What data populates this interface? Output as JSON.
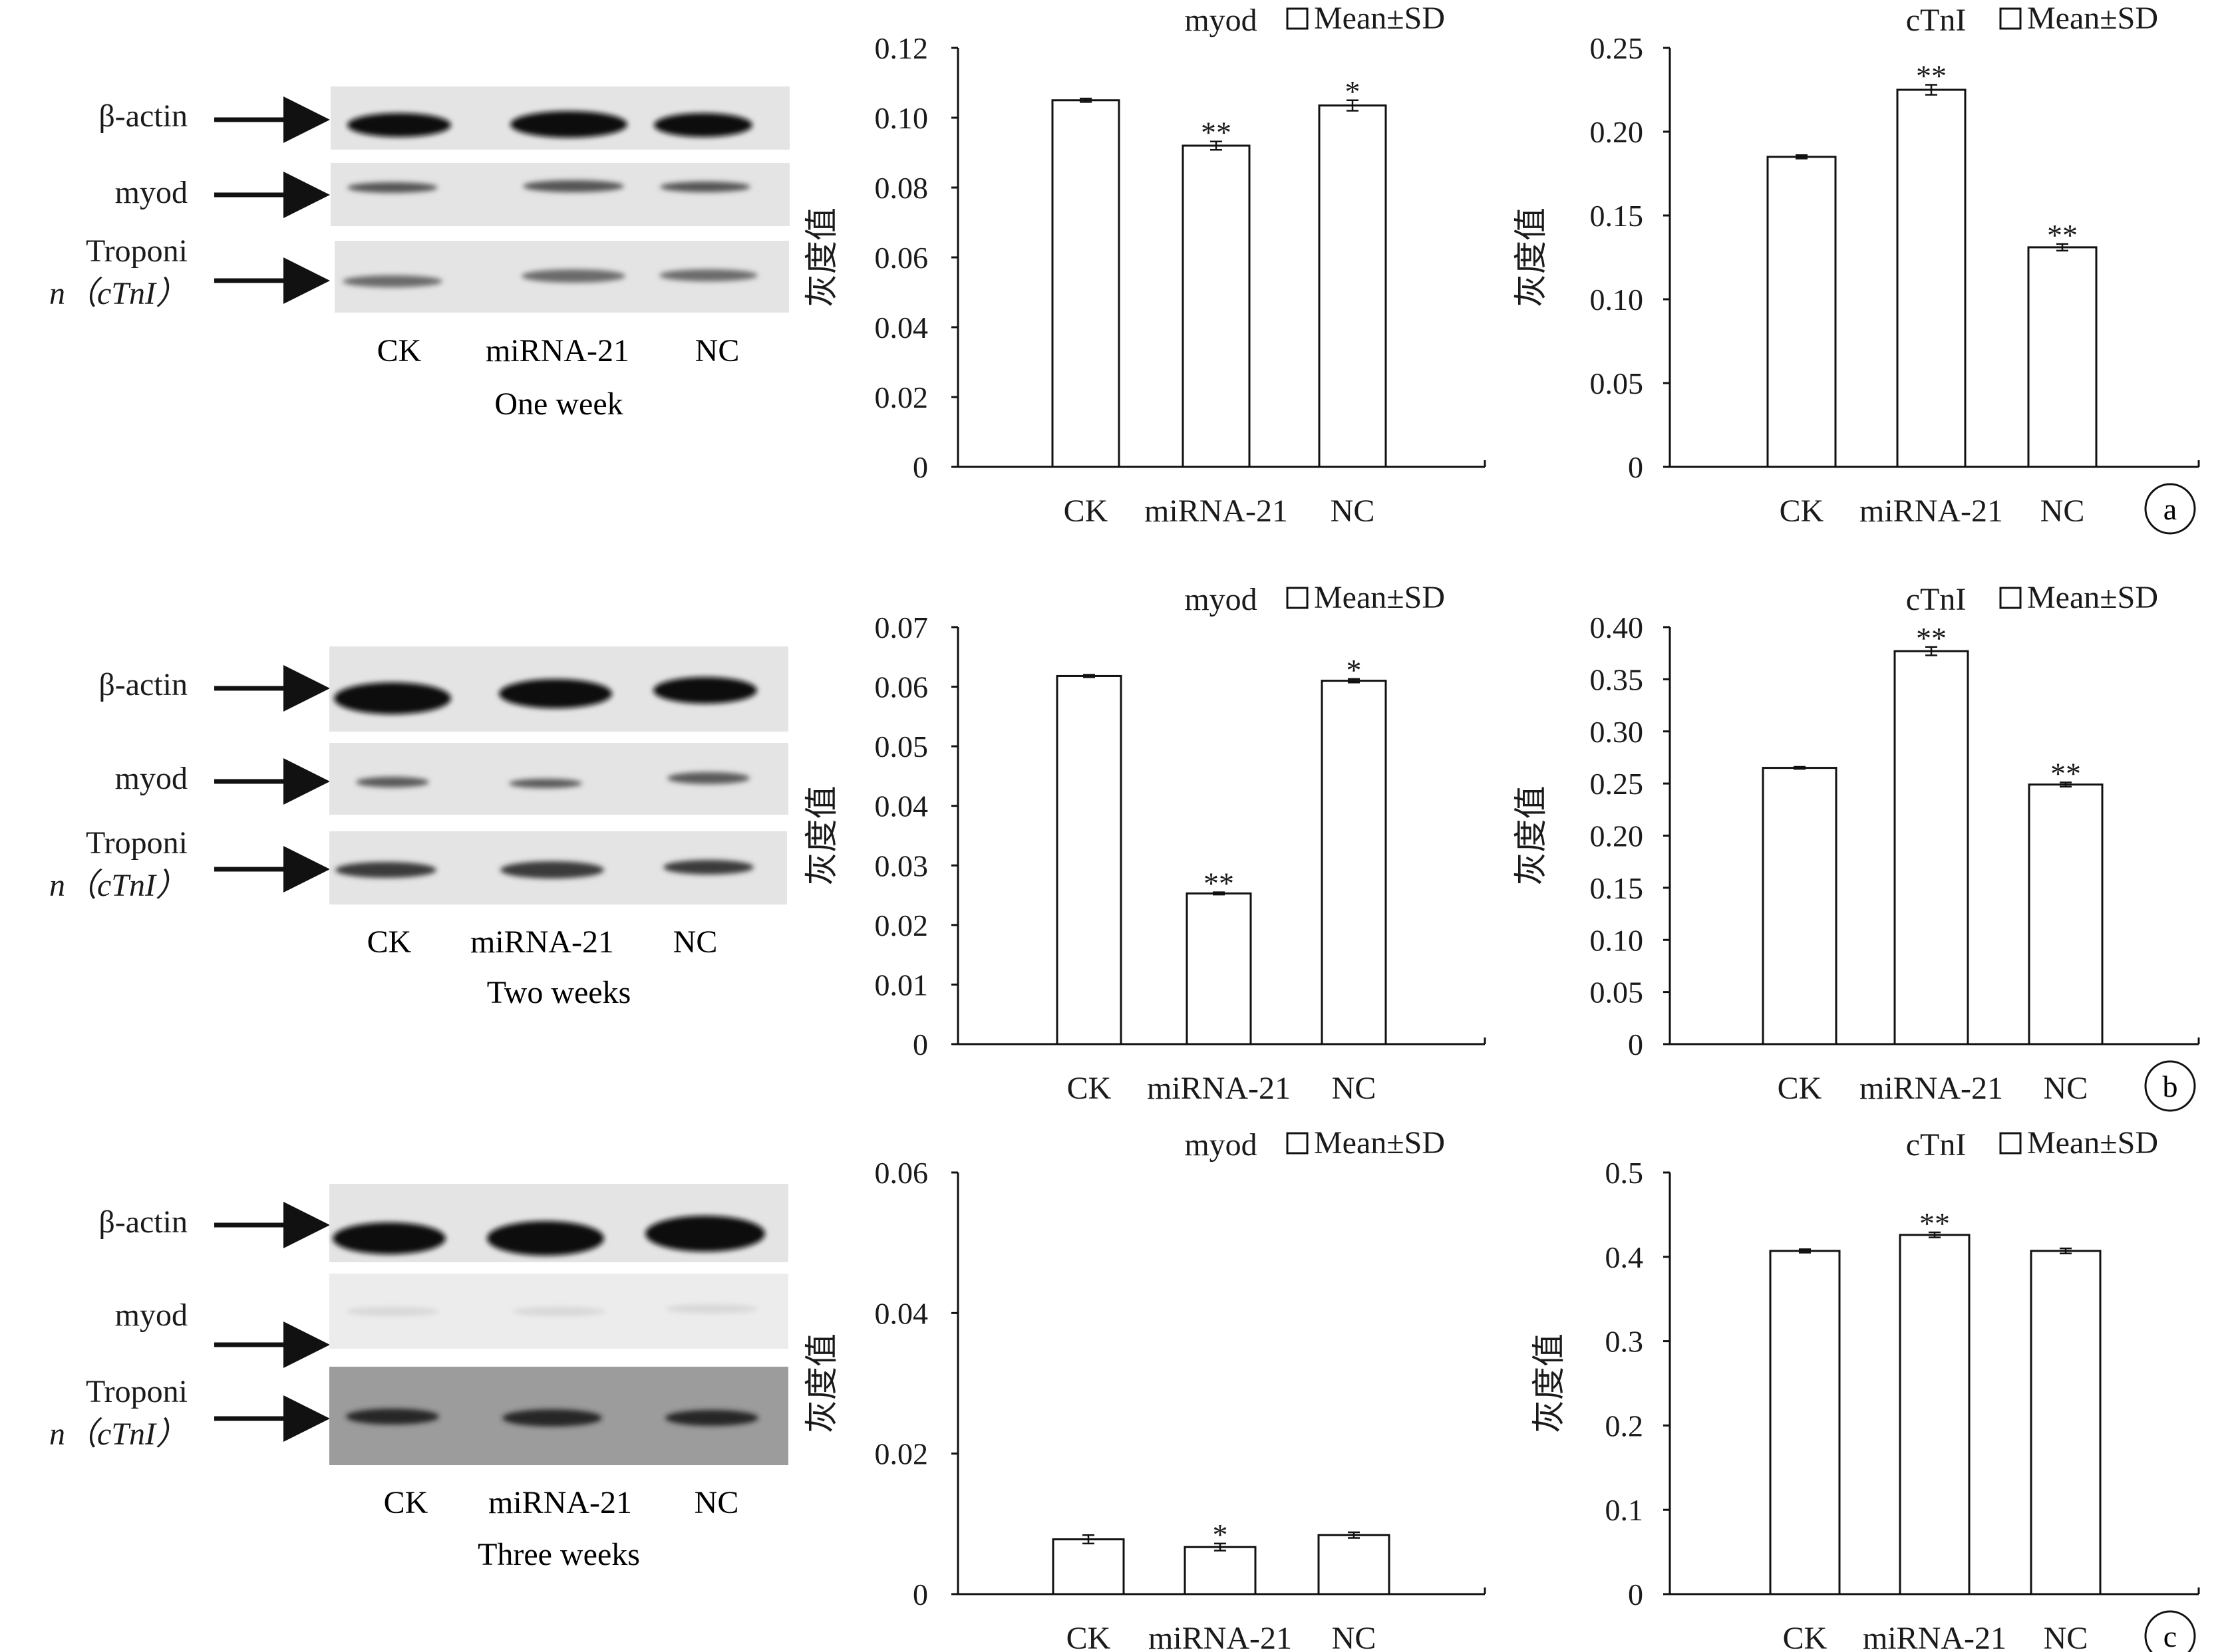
{
  "figure": {
    "rows": [
      {
        "panel_label": "a",
        "blot": {
          "period_label": "One week",
          "lanes": [
            "CK",
            "miRNA-21",
            "NC"
          ],
          "band_labels": [
            [
              "β-actin"
            ],
            [
              "myod"
            ],
            [
              "Troponi",
              "n（cTnI）"
            ]
          ]
        }
      },
      {
        "panel_label": "b",
        "blot": {
          "period_label": "Two weeks",
          "lanes": [
            "CK",
            "miRNA-21",
            "NC"
          ],
          "band_labels": [
            [
              "β-actin"
            ],
            [
              "myod"
            ],
            [
              "Troponi",
              "n（cTnI）"
            ]
          ]
        }
      },
      {
        "panel_label": "c",
        "blot": {
          "period_label": "Three weeks",
          "lanes": [
            "CK",
            "miRNA-21",
            "NC"
          ],
          "band_labels": [
            [
              "β-actin"
            ],
            [
              "myod"
            ],
            [
              "Troponi",
              "n（cTnI）"
            ]
          ]
        }
      }
    ]
  },
  "chart_data": [
    {
      "type": "bar",
      "row": 0,
      "title": "myod",
      "legend": "Mean±SD",
      "ylabel": "灰度值",
      "categories": [
        "CK",
        "miRNA-21",
        "NC"
      ],
      "values": [
        0.105,
        0.092,
        0.1035
      ],
      "errors": [
        0.0005,
        0.0012,
        0.0015
      ],
      "significance": [
        "",
        "**",
        "*"
      ],
      "ylim": [
        0,
        0.12
      ],
      "yticks": [
        "0",
        "0.02",
        "0.04",
        "0.06",
        "0.08",
        "0.10",
        "0.12"
      ]
    },
    {
      "type": "bar",
      "row": 0,
      "title": "cTnI",
      "legend": "Mean±SD",
      "ylabel": "灰度值",
      "categories": [
        "CK",
        "miRNA-21",
        "NC"
      ],
      "values": [
        0.185,
        0.225,
        0.131
      ],
      "errors": [
        0.001,
        0.003,
        0.002
      ],
      "significance": [
        "",
        "**",
        "**"
      ],
      "ylim": [
        0,
        0.25
      ],
      "yticks": [
        "0",
        "0.05",
        "0.10",
        "0.15",
        "0.20",
        "0.25"
      ]
    },
    {
      "type": "bar",
      "row": 1,
      "title": "myod",
      "legend": "Mean±SD",
      "ylabel": "灰度值",
      "categories": [
        "CK",
        "miRNA-21",
        "NC"
      ],
      "values": [
        0.0618,
        0.0253,
        0.061
      ],
      "errors": [
        0.0002,
        0.0002,
        0.0003
      ],
      "significance": [
        "",
        "**",
        "*"
      ],
      "ylim": [
        0,
        0.07
      ],
      "yticks": [
        "0",
        "0.01",
        "0.02",
        "0.03",
        "0.04",
        "0.05",
        "0.06",
        "0.07"
      ]
    },
    {
      "type": "bar",
      "row": 1,
      "title": "cTnI",
      "legend": "Mean±SD",
      "ylabel": "灰度值",
      "categories": [
        "CK",
        "miRNA-21",
        "NC"
      ],
      "values": [
        0.265,
        0.377,
        0.249
      ],
      "errors": [
        0.001,
        0.004,
        0.002
      ],
      "significance": [
        "",
        "**",
        "**"
      ],
      "ylim": [
        0,
        0.4
      ],
      "yticks": [
        "0",
        "0.05",
        "0.10",
        "0.15",
        "0.20",
        "0.25",
        "0.30",
        "0.35",
        "0.40"
      ]
    },
    {
      "type": "bar",
      "row": 2,
      "title": "myod",
      "legend": "Mean±SD",
      "ylabel": "灰度值",
      "categories": [
        "CK",
        "miRNA-21",
        "NC"
      ],
      "values": [
        0.0078,
        0.0067,
        0.0084
      ],
      "errors": [
        0.0006,
        0.0005,
        0.0004
      ],
      "significance": [
        "",
        "*",
        ""
      ],
      "ylim": [
        0,
        0.06
      ],
      "yticks": [
        "0",
        "0.02",
        "0.04",
        "0.06"
      ]
    },
    {
      "type": "bar",
      "row": 2,
      "title": "cTnI",
      "legend": "Mean±SD",
      "ylabel": "灰度值",
      "categories": [
        "CK",
        "miRNA-21",
        "NC"
      ],
      "values": [
        0.407,
        0.426,
        0.407
      ],
      "errors": [
        0.002,
        0.003,
        0.003
      ],
      "significance": [
        "",
        "**",
        ""
      ],
      "ylim": [
        0,
        0.5
      ],
      "yticks": [
        "0",
        "0.1",
        "0.2",
        "0.3",
        "0.4",
        "0.5"
      ]
    }
  ]
}
